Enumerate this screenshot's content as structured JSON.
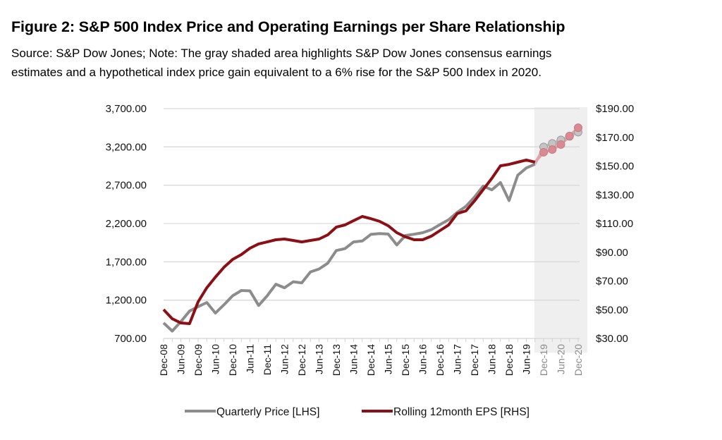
{
  "figure": {
    "title": "Figure 2:  S&P 500 Index Price and Operating Earnings per Share Relationship",
    "note_line1": "Source: S&P Dow Jones;  Note:  The gray shaded area highlights S&P Dow Jones consensus earnings",
    "note_line2": "estimates and a hypothetical index price gain equivalent to a 6% rise for the S&P 500 Index in 2020."
  },
  "chart_data": {
    "type": "line",
    "title": "S&P 500 Index Price and Operating Earnings per Share Relationship",
    "xlabel": "",
    "ylabel_left": "Quarterly Price",
    "ylabel_right": "Rolling 12month EPS",
    "grid": true,
    "legend_position": "bottom",
    "x": [
      "Dec-08",
      "Mar-09",
      "Jun-09",
      "Sep-09",
      "Dec-09",
      "Mar-10",
      "Jun-10",
      "Sep-10",
      "Dec-10",
      "Mar-11",
      "Jun-11",
      "Sep-11",
      "Dec-11",
      "Mar-12",
      "Jun-12",
      "Sep-12",
      "Dec-12",
      "Mar-13",
      "Jun-13",
      "Sep-13",
      "Dec-13",
      "Mar-14",
      "Jun-14",
      "Sep-14",
      "Dec-14",
      "Mar-15",
      "Jun-15",
      "Sep-15",
      "Dec-15",
      "Mar-16",
      "Jun-16",
      "Sep-16",
      "Dec-16",
      "Mar-17",
      "Jun-17",
      "Sep-17",
      "Dec-17",
      "Mar-18",
      "Jun-18",
      "Sep-18",
      "Dec-18",
      "Mar-19",
      "Jun-19",
      "Sep-19",
      "Dec-19",
      "Mar-20",
      "Jun-20",
      "Sep-20",
      "Dec-20"
    ],
    "x_tick_labels": [
      "Dec-08",
      "Jun-09",
      "Dec-09",
      "Jun-10",
      "Dec-10",
      "Jun-11",
      "Dec-11",
      "Jun-12",
      "Dec-12",
      "Jun-13",
      "Dec-13",
      "Jun-14",
      "Dec-14",
      "Jun-15",
      "Dec-15",
      "Jun-16",
      "Dec-16",
      "Jun-17",
      "Dec-17",
      "Jun-18",
      "Dec-18",
      "Jun-19",
      "Dec-19",
      "Jun-20",
      "Dec-20"
    ],
    "projected_tick_labels": [
      "Dec-19",
      "Jun-20",
      "Dec-20"
    ],
    "y_left": {
      "range": [
        700,
        3700
      ],
      "ticks": [
        "3,700.00",
        "3,200.00",
        "2,700.00",
        "2,200.00",
        "1,700.00",
        "1,200.00",
        "700.00"
      ],
      "tick_values": [
        3700,
        3200,
        2700,
        2200,
        1700,
        1200,
        700
      ]
    },
    "y_right": {
      "range": [
        30,
        190
      ],
      "ticks": [
        "$190.00",
        "$170.00",
        "$150.00",
        "$130.00",
        "$110.00",
        "$90.00",
        "$70.00",
        "$50.00",
        "$30.00"
      ],
      "tick_values": [
        190,
        170,
        150,
        130,
        110,
        90,
        70,
        50,
        30
      ]
    },
    "shaded_region": {
      "from": "Sep-19",
      "to": "Dec-20",
      "label": "consensus estimates / hypothetical"
    },
    "series": [
      {
        "name": "Quarterly Price [LHS]",
        "axis": "left",
        "color": "#8c8c8c",
        "values": [
          903,
          797,
          919,
          1057,
          1115,
          1169,
          1031,
          1141,
          1258,
          1326,
          1321,
          1131,
          1258,
          1408,
          1362,
          1440,
          1426,
          1569,
          1606,
          1682,
          1848,
          1872,
          1960,
          1972,
          2058,
          2068,
          2063,
          1920,
          2044,
          2060,
          2080,
          2120,
          2186,
          2250,
          2345,
          2425,
          2545,
          2690,
          2640,
          2735,
          2500,
          2830,
          2925,
          2975,
          3200,
          3246,
          3292,
          3338,
          3393
        ],
        "projected_from_index": 44
      },
      {
        "name": "Rolling 12month EPS [RHS]",
        "axis": "right",
        "color": "#8b0f14",
        "values": [
          50.1,
          43.7,
          40.8,
          40.3,
          55.5,
          65.3,
          72.7,
          79.6,
          85.0,
          88.4,
          92.8,
          95.8,
          97.2,
          98.7,
          99.2,
          98.2,
          97.2,
          98.2,
          99.2,
          102.1,
          107.5,
          109.0,
          112.0,
          114.9,
          113.4,
          111.5,
          108.5,
          103.6,
          100.7,
          98.7,
          98.7,
          101.2,
          105.1,
          109.0,
          116.9,
          118.8,
          125.7,
          133.6,
          141.4,
          150.2,
          151.2,
          152.7,
          154.2,
          152.7,
          159.6,
          161.5,
          165.0,
          170.9,
          176.7
        ],
        "projected_from_index": 44
      }
    ],
    "projected_colors": {
      "price_marker": "#c4c4c4",
      "eps_marker": "#d98a92"
    }
  },
  "legend": {
    "items": [
      {
        "label": "Quarterly Price [LHS]",
        "color": "#8c8c8c"
      },
      {
        "label": "Rolling 12month EPS [RHS]",
        "color": "#8b0f14"
      }
    ]
  }
}
